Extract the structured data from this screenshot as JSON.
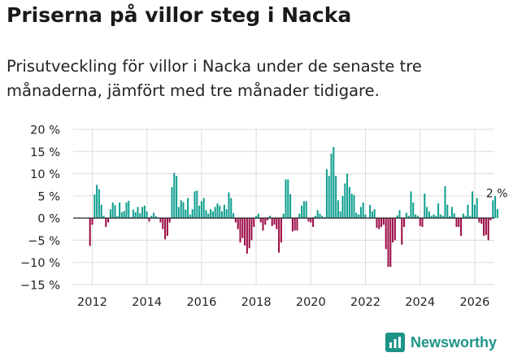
{
  "header": {
    "title": "Priserna på villor steg i Nacka",
    "subtitle": "Prisutveckling för villor i Nacka under de senaste tre månaderna, jämfört med tre månader tidigare."
  },
  "brand": {
    "name": "Newsworthy",
    "color": "#1e9489"
  },
  "colors": {
    "positive": "#0f9f8f",
    "negative": "#9b0a45",
    "grid": "#dcdcdc",
    "zero": "#222222"
  },
  "chart_data": {
    "type": "bar",
    "title": "Priserna på villor steg i Nacka",
    "xlabel": "",
    "ylabel": "",
    "ylim": [
      -15,
      20
    ],
    "yticks": [
      20,
      15,
      10,
      5,
      0,
      -5,
      -10,
      -15
    ],
    "ytick_labels": [
      "20 %",
      "15 %",
      "10 %",
      "5 %",
      "0 %",
      "−5 %",
      "−10 %",
      "−15 %"
    ],
    "xticks": [
      2012,
      2014,
      2016,
      2018,
      2020,
      2022,
      2024,
      2026
    ],
    "xtick_labels": [
      "2012",
      "2014",
      "2016",
      "2018",
      "2020",
      "2022",
      "2024",
      "2026"
    ],
    "grid": true,
    "annotation": "2 %",
    "start": [
      2011,
      12
    ],
    "unit": "month",
    "values": [
      -6.3,
      -1.5,
      5.3,
      7.5,
      6.5,
      3.0,
      0.5,
      -2.0,
      -1.0,
      2.0,
      3.5,
      2.9,
      0.4,
      3.5,
      1.3,
      1.6,
      3.5,
      3.9,
      0.2,
      1.9,
      1.3,
      2.5,
      1.1,
      2.5,
      2.8,
      1.5,
      -0.8,
      0.5,
      1.2,
      0.4,
      -0.1,
      -1.0,
      -2.5,
      -4.8,
      -4.0,
      -1.0,
      7.0,
      10.2,
      9.5,
      2.5,
      4.0,
      3.6,
      1.9,
      4.5,
      0.8,
      2.0,
      6.0,
      6.2,
      2.8,
      3.8,
      4.5,
      1.8,
      1.0,
      2.0,
      1.5,
      2.5,
      3.3,
      2.8,
      1.5,
      3.0,
      2.0,
      5.8,
      4.5,
      1.1,
      -1.0,
      -2.5,
      -5.5,
      -4.5,
      -6.2,
      -8.0,
      -6.8,
      -5.0,
      -2.0,
      0.5,
      1.0,
      -1.0,
      -2.8,
      -1.5,
      -0.5,
      0.5,
      -1.8,
      -1.5,
      -2.5,
      -7.8,
      -5.5,
      1.0,
      8.7,
      8.7,
      5.4,
      -3.0,
      -2.8,
      -2.8,
      1.0,
      2.8,
      3.8,
      3.8,
      -0.8,
      -1.0,
      -2.0,
      0.5,
      1.8,
      1.0,
      0.5,
      0.2,
      11.0,
      9.5,
      14.5,
      16.0,
      9.5,
      4.0,
      1.5,
      5.0,
      7.8,
      10.0,
      7.0,
      5.5,
      5.2,
      1.2,
      0.8,
      2.5,
      3.5,
      0.8,
      0.1,
      3.0,
      1.5,
      2.0,
      -2.2,
      -2.5,
      -2.0,
      -1.5,
      -7.0,
      -11.0,
      -11.0,
      -5.5,
      -5.0,
      0.6,
      1.8,
      -6.0,
      -2.0,
      1.2,
      0.5,
      6.0,
      3.5,
      0.8,
      0.5,
      -1.8,
      -2.0,
      5.5,
      2.5,
      1.5,
      0.5,
      0.8,
      0.5,
      3.3,
      0.8,
      0.5,
      7.2,
      3.0,
      0.4,
      2.5,
      1.1,
      -2.0,
      -2.0,
      -4.0,
      1.0,
      0.5,
      3.0,
      0.5,
      6.0,
      3.0,
      4.5,
      -1.0,
      -1.3,
      -4.0,
      -3.8,
      -5.0,
      -0.5,
      4.0,
      5.0,
      2.0
    ]
  }
}
